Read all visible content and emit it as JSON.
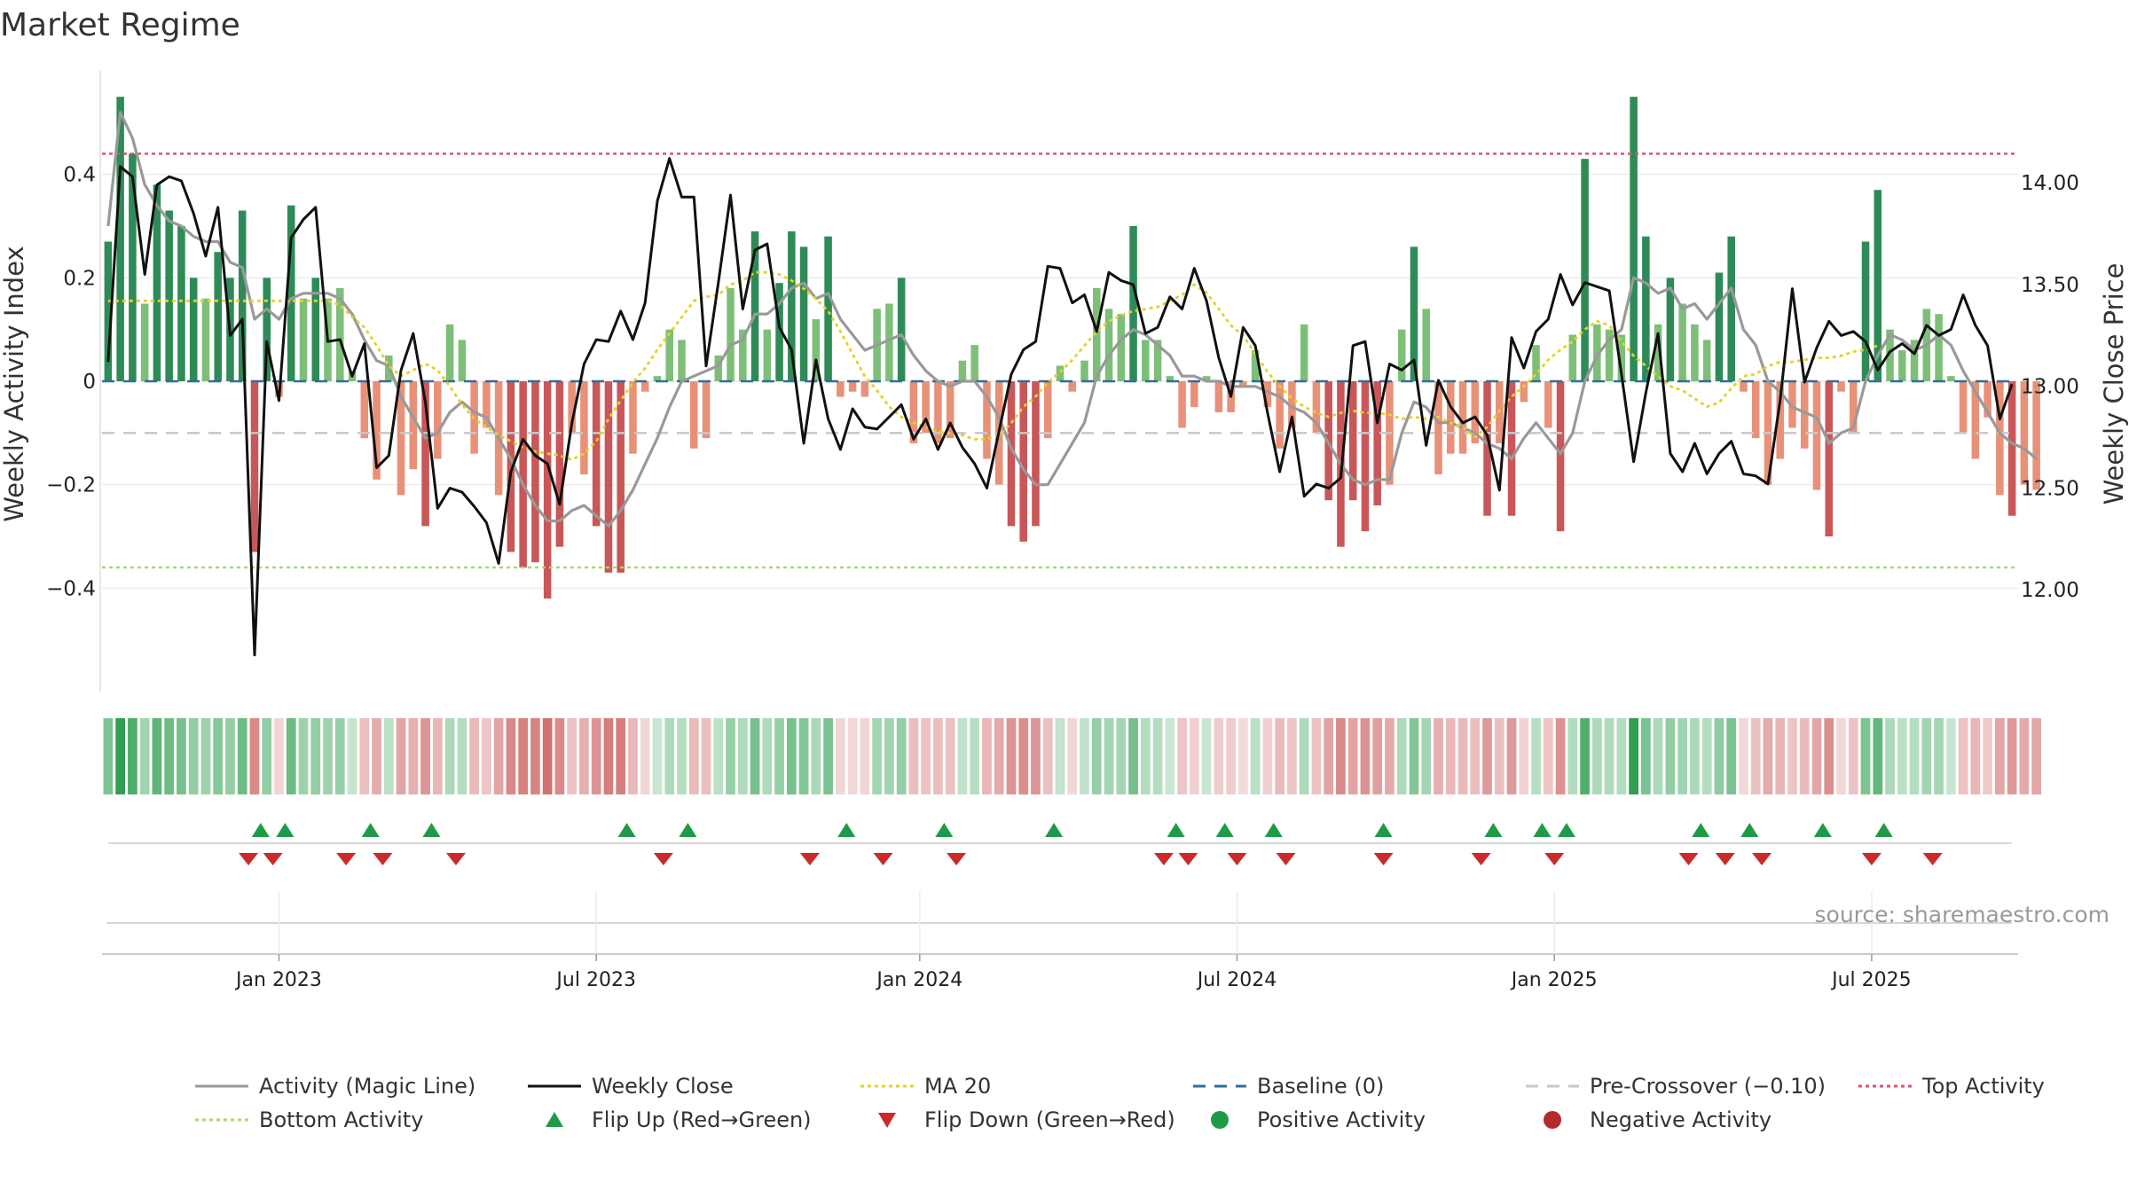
{
  "chart_data": {
    "type": "bar",
    "title": "Market Regime",
    "ylabel_left": "Weekly Activity Index",
    "ylabel_right": "Weekly Close Price",
    "left_ylim": [
      -0.6,
      0.6
    ],
    "left_ticks": [
      0.4,
      0.2,
      0,
      -0.2,
      -0.4
    ],
    "left_tick_labels": [
      "0.4",
      "0.2",
      "0",
      "−0.2",
      "−0.4"
    ],
    "right_ylim": [
      11.5,
      14.55
    ],
    "right_ticks": [
      14.0,
      13.5,
      13.0,
      12.5,
      12.0
    ],
    "right_tick_labels": [
      "14.00",
      "13.50",
      "13.00",
      "12.50",
      "12.00"
    ],
    "x_range_weeks": [
      0,
      157
    ],
    "x_start": "2022-11-06",
    "x_ticks": [
      {
        "week": 14.5,
        "label": "Jan 2023"
      },
      {
        "week": 40.5,
        "label": "Jul 2023"
      },
      {
        "week": 67,
        "label": "Jan 2024"
      },
      {
        "week": 93,
        "label": "Jul 2024"
      },
      {
        "week": 119,
        "label": "Jan 2025"
      },
      {
        "week": 145,
        "label": "Jul 2025"
      }
    ],
    "activity": [
      0.27,
      0.55,
      0.44,
      0.15,
      0.38,
      0.33,
      0.3,
      0.2,
      0.16,
      0.25,
      0.2,
      0.33,
      -0.33,
      0.2,
      -0.03,
      0.34,
      0.16,
      0.2,
      0.16,
      0.18,
      0.02,
      -0.11,
      -0.19,
      0.05,
      -0.22,
      -0.17,
      -0.28,
      -0.15,
      0.11,
      0.08,
      -0.14,
      -0.09,
      -0.22,
      -0.33,
      -0.36,
      -0.35,
      -0.42,
      -0.32,
      -0.1,
      -0.18,
      -0.28,
      -0.37,
      -0.37,
      -0.14,
      -0.02,
      0.01,
      0.1,
      0.08,
      -0.13,
      -0.11,
      0.05,
      0.18,
      0.1,
      0.29,
      0.1,
      0.19,
      0.29,
      0.26,
      0.12,
      0.28,
      -0.03,
      -0.02,
      -0.03,
      0.14,
      0.15,
      0.2,
      -0.12,
      -0.1,
      -0.12,
      -0.11,
      0.04,
      0.07,
      -0.15,
      -0.2,
      -0.28,
      -0.31,
      -0.28,
      -0.11,
      0.03,
      -0.02,
      0.04,
      0.18,
      0.14,
      0.13,
      0.3,
      0.08,
      0.08,
      0.01,
      -0.09,
      -0.05,
      0.01,
      -0.06,
      -0.06,
      -0.01,
      0.06,
      -0.05,
      -0.13,
      -0.09,
      0.11,
      -0.1,
      -0.23,
      -0.32,
      -0.23,
      -0.29,
      -0.24,
      -0.2,
      0.1,
      0.26,
      0.14,
      -0.18,
      -0.14,
      -0.14,
      -0.12,
      -0.26,
      -0.12,
      -0.26,
      -0.04,
      0.07,
      -0.09,
      -0.29,
      0.09,
      0.43,
      0.11,
      0.1,
      0.09,
      0.55,
      0.28,
      0.11,
      0.2,
      0.15,
      0.11,
      0.08,
      0.21,
      0.28,
      -0.02,
      -0.11,
      -0.2,
      -0.15,
      -0.09,
      -0.13,
      -0.21,
      -0.3,
      -0.02,
      -0.1,
      0.27,
      0.37,
      0.1,
      0.06,
      0.08,
      0.14,
      0.13,
      0.01,
      -0.1,
      -0.15,
      -0.07,
      -0.22,
      -0.26,
      -0.2,
      -0.21
    ],
    "weekly_close": [
      13.12,
      14.08,
      14.03,
      13.55,
      13.99,
      14.03,
      14.01,
      13.85,
      13.64,
      13.88,
      13.25,
      13.33,
      11.68,
      13.22,
      12.93,
      13.73,
      13.82,
      13.88,
      13.22,
      13.23,
      13.05,
      13.21,
      12.6,
      12.66,
      13.08,
      13.26,
      12.92,
      12.4,
      12.5,
      12.48,
      12.41,
      12.33,
      12.13,
      12.58,
      12.74,
      12.66,
      12.62,
      12.42,
      12.82,
      13.11,
      13.23,
      13.22,
      13.37,
      13.23,
      13.41,
      13.91,
      14.12,
      13.93,
      13.93,
      13.1,
      13.51,
      13.94,
      13.38,
      13.67,
      13.7,
      13.29,
      13.18,
      12.72,
      13.13,
      12.84,
      12.69,
      12.89,
      12.8,
      12.79,
      12.85,
      12.91,
      12.74,
      12.84,
      12.69,
      12.82,
      12.7,
      12.62,
      12.5,
      12.78,
      13.06,
      13.18,
      13.22,
      13.59,
      13.58,
      13.41,
      13.45,
      13.27,
      13.56,
      13.52,
      13.5,
      13.26,
      13.29,
      13.44,
      13.38,
      13.58,
      13.42,
      13.14,
      12.95,
      13.29,
      13.2,
      12.87,
      12.58,
      12.85,
      12.46,
      12.52,
      12.5,
      12.55,
      13.2,
      13.22,
      12.82,
      13.11,
      13.08,
      13.13,
      12.71,
      13.03,
      12.9,
      12.82,
      12.85,
      12.76,
      12.49,
      13.24,
      13.09,
      13.27,
      13.33,
      13.55,
      13.4,
      13.51,
      13.49,
      13.47,
      13.06,
      12.63,
      12.97,
      13.26,
      12.67,
      12.58,
      12.72,
      12.57,
      12.67,
      12.73,
      12.57,
      12.56,
      12.52,
      12.93,
      13.48,
      13.02,
      13.19,
      13.32,
      13.25,
      13.27,
      13.22,
      13.08,
      13.17,
      13.21,
      13.16,
      13.3,
      13.25,
      13.28,
      13.45,
      13.3,
      13.2,
      12.84,
      13.01
    ],
    "magic_line": [
      0.3,
      0.52,
      0.47,
      0.38,
      0.34,
      0.31,
      0.3,
      0.28,
      0.27,
      0.27,
      0.23,
      0.22,
      0.12,
      0.14,
      0.12,
      0.16,
      0.17,
      0.17,
      0.17,
      0.16,
      0.13,
      0.08,
      0.04,
      0.03,
      -0.03,
      -0.07,
      -0.11,
      -0.1,
      -0.06,
      -0.04,
      -0.06,
      -0.07,
      -0.11,
      -0.15,
      -0.2,
      -0.24,
      -0.27,
      -0.27,
      -0.25,
      -0.24,
      -0.26,
      -0.28,
      -0.25,
      -0.21,
      -0.16,
      -0.11,
      -0.05,
      0.0,
      0.01,
      0.02,
      0.03,
      0.07,
      0.08,
      0.13,
      0.13,
      0.15,
      0.18,
      0.19,
      0.16,
      0.17,
      0.12,
      0.09,
      0.06,
      0.07,
      0.08,
      0.09,
      0.05,
      0.02,
      0.0,
      -0.01,
      0.0,
      0.0,
      -0.03,
      -0.07,
      -0.13,
      -0.17,
      -0.2,
      -0.2,
      -0.16,
      -0.12,
      -0.08,
      0.01,
      0.05,
      0.08,
      0.1,
      0.09,
      0.07,
      0.05,
      0.01,
      0.01,
      0.0,
      0.0,
      -0.01,
      -0.01,
      -0.01,
      -0.02,
      -0.03,
      -0.05,
      -0.06,
      -0.08,
      -0.12,
      -0.16,
      -0.19,
      -0.2,
      -0.19,
      -0.19,
      -0.1,
      -0.04,
      -0.05,
      -0.08,
      -0.08,
      -0.09,
      -0.1,
      -0.12,
      -0.13,
      -0.15,
      -0.11,
      -0.08,
      -0.11,
      -0.14,
      -0.1,
      0.0,
      0.05,
      0.08,
      0.1,
      0.2,
      0.19,
      0.17,
      0.18,
      0.14,
      0.15,
      0.12,
      0.15,
      0.18,
      0.1,
      0.07,
      0.0,
      -0.02,
      -0.05,
      -0.06,
      -0.07,
      -0.12,
      -0.1,
      -0.09,
      0.0,
      0.05,
      0.09,
      0.08,
      0.06,
      0.07,
      0.09,
      0.07,
      0.02,
      -0.02,
      -0.06,
      -0.1,
      -0.12,
      -0.13,
      -0.15
    ],
    "ma20": [
      13.42,
      13.42,
      13.42,
      13.42,
      13.42,
      13.42,
      13.42,
      13.42,
      13.42,
      13.42,
      13.42,
      13.42,
      13.42,
      13.42,
      13.42,
      13.42,
      13.42,
      13.42,
      13.42,
      13.4,
      13.34,
      13.29,
      13.2,
      13.1,
      13.05,
      13.08,
      13.11,
      13.08,
      13.0,
      12.91,
      12.84,
      12.8,
      12.76,
      12.73,
      12.7,
      12.68,
      12.67,
      12.66,
      12.64,
      12.67,
      12.73,
      12.84,
      12.93,
      13.02,
      13.09,
      13.18,
      13.26,
      13.34,
      13.42,
      13.44,
      13.45,
      13.5,
      13.52,
      13.56,
      13.56,
      13.55,
      13.52,
      13.48,
      13.43,
      13.37,
      13.27,
      13.16,
      13.05,
      12.98,
      12.9,
      12.85,
      12.82,
      12.8,
      12.78,
      12.77,
      12.76,
      12.74,
      12.74,
      12.76,
      12.82,
      12.9,
      12.95,
      13.02,
      13.07,
      13.13,
      13.2,
      13.27,
      13.32,
      13.35,
      13.37,
      13.38,
      13.39,
      13.42,
      13.45,
      13.5,
      13.46,
      13.38,
      13.3,
      13.25,
      13.16,
      13.07,
      13.0,
      12.94,
      12.9,
      12.87,
      12.85,
      12.87,
      12.88,
      12.87,
      12.87,
      12.86,
      12.84,
      12.85,
      12.84,
      12.85,
      12.82,
      12.8,
      12.75,
      12.8,
      12.88,
      12.95,
      13.0,
      13.06,
      13.13,
      13.18,
      13.22,
      13.28,
      13.32,
      13.3,
      13.22,
      13.15,
      13.1,
      13.05,
      13.0,
      12.98,
      12.94,
      12.9,
      12.92,
      12.99,
      13.05,
      13.06,
      13.1,
      13.12,
      13.12,
      13.13,
      13.14,
      13.14,
      13.15,
      13.17,
      13.18,
      13.2
    ],
    "levels": {
      "top_activity": 0.44,
      "bottom_activity": -0.36,
      "pre_crossover": -0.1,
      "baseline": 0
    },
    "flip_up_weeks": [
      13,
      15,
      22,
      27,
      43,
      48,
      61,
      69,
      78,
      88,
      92,
      96,
      105,
      114,
      118,
      120,
      131,
      135,
      141,
      146
    ],
    "flip_down_weeks": [
      12,
      14,
      20,
      23,
      29,
      46,
      58,
      64,
      70,
      87,
      89,
      93,
      97,
      105,
      113,
      119,
      130,
      133,
      136,
      145,
      150
    ],
    "source_text": "source: sharemaestro.com",
    "colors": {
      "green_dark": "#2e8b57",
      "green_light": "#7dbf78",
      "red_dark": "#c95658",
      "red_light": "#e89178",
      "magic_line": "#999999",
      "weekly_close": "#111111",
      "ma20": "#e6d12a",
      "baseline": "#2f6f99",
      "pre_crossover": "#c8c8c8",
      "top_activity": "#d9556a",
      "bottom_activity": "#a6d96a",
      "flip_up": "#1f9b48",
      "flip_down": "#cc2a2a"
    },
    "legend_position": "bottom",
    "legend": [
      {
        "label": "Activity (Magic Line)",
        "kind": "line",
        "color": "#999999",
        "dash": ""
      },
      {
        "label": "Weekly Close",
        "kind": "line",
        "color": "#111111",
        "dash": ""
      },
      {
        "label": "MA 20",
        "kind": "line",
        "color": "#e6d12a",
        "dash": "4,4"
      },
      {
        "label": "Baseline (0)",
        "kind": "line",
        "color": "#2f6f99",
        "dash": "14,10"
      },
      {
        "label": "Pre-Crossover (−0.10)",
        "kind": "line",
        "color": "#c8c8c8",
        "dash": "14,10"
      },
      {
        "label": "Top Activity",
        "kind": "line",
        "color": "#d9556a",
        "dash": "4,4"
      },
      {
        "label": "Bottom Activity",
        "kind": "line",
        "color": "#a6d96a",
        "dash": "4,4"
      },
      {
        "label": "Flip Up (Red→Green)",
        "kind": "tri-up",
        "color": "#1f9b48"
      },
      {
        "label": "Flip Down (Green→Red)",
        "kind": "tri-down",
        "color": "#cc2a2a"
      },
      {
        "label": "Positive Activity",
        "kind": "dot",
        "color": "#1f9b48"
      },
      {
        "label": "Negative Activity",
        "kind": "dot",
        "color": "#b52a2a"
      }
    ]
  }
}
